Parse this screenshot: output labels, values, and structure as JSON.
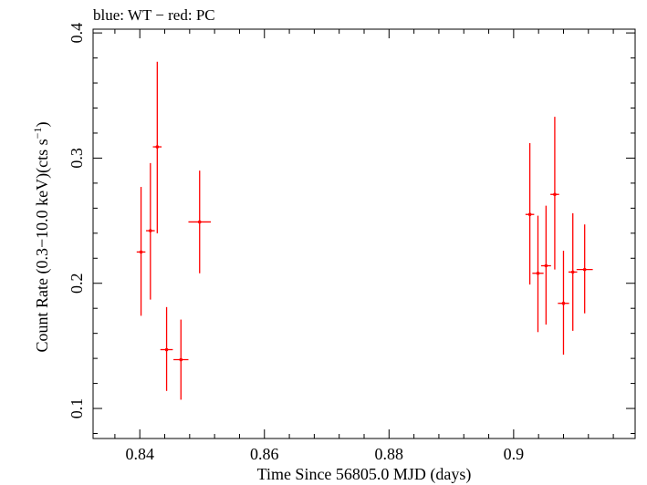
{
  "chart_data": {
    "type": "scatter",
    "title": "blue: WT − red: PC",
    "xlabel": "Time Since 56805.0 MJD (days)",
    "ylabel": "Count Rate (0.3−10.0 keV)(cts s",
    "ylabel_sup": "−1",
    "ylabel_end": ")",
    "xlim": [
      0.8325,
      0.9195
    ],
    "ylim": [
      0.076,
      0.403
    ],
    "x_ticks_major": [
      0.84,
      0.86,
      0.88,
      0.9
    ],
    "x_tick_labels": [
      "0.84",
      "0.86",
      "0.88",
      "0.9"
    ],
    "y_ticks_major": [
      0.1,
      0.2,
      0.3,
      0.4
    ],
    "y_tick_labels": [
      "0.1",
      "0.2",
      "0.3",
      "0.4"
    ],
    "grid": false,
    "series": [
      {
        "color": "#ff0000",
        "points": [
          {
            "x": 0.8402,
            "y": 0.225,
            "xerr": 0.0007,
            "ylo": 0.174,
            "yhi": 0.277
          },
          {
            "x": 0.8417,
            "y": 0.242,
            "xerr": 0.0007,
            "ylo": 0.187,
            "yhi": 0.296
          },
          {
            "x": 0.8428,
            "y": 0.309,
            "xerr": 0.0007,
            "ylo": 0.24,
            "yhi": 0.377
          },
          {
            "x": 0.8443,
            "y": 0.147,
            "xerr": 0.001,
            "ylo": 0.114,
            "yhi": 0.181
          },
          {
            "x": 0.8466,
            "y": 0.139,
            "xerr": 0.0012,
            "ylo": 0.107,
            "yhi": 0.171
          },
          {
            "x": 0.8496,
            "y": 0.249,
            "xerr": 0.0018,
            "ylo": 0.208,
            "yhi": 0.29
          },
          {
            "x": 0.9026,
            "y": 0.255,
            "xerr": 0.0007,
            "ylo": 0.199,
            "yhi": 0.312
          },
          {
            "x": 0.9039,
            "y": 0.208,
            "xerr": 0.0009,
            "ylo": 0.161,
            "yhi": 0.254
          },
          {
            "x": 0.9052,
            "y": 0.214,
            "xerr": 0.0008,
            "ylo": 0.167,
            "yhi": 0.262
          },
          {
            "x": 0.9066,
            "y": 0.271,
            "xerr": 0.0007,
            "ylo": 0.211,
            "yhi": 0.333
          },
          {
            "x": 0.908,
            "y": 0.184,
            "xerr": 0.0009,
            "ylo": 0.143,
            "yhi": 0.226
          },
          {
            "x": 0.9095,
            "y": 0.209,
            "xerr": 0.0007,
            "ylo": 0.162,
            "yhi": 0.256
          },
          {
            "x": 0.9114,
            "y": 0.211,
            "xerr": 0.0013,
            "ylo": 0.176,
            "yhi": 0.247
          }
        ]
      }
    ]
  }
}
